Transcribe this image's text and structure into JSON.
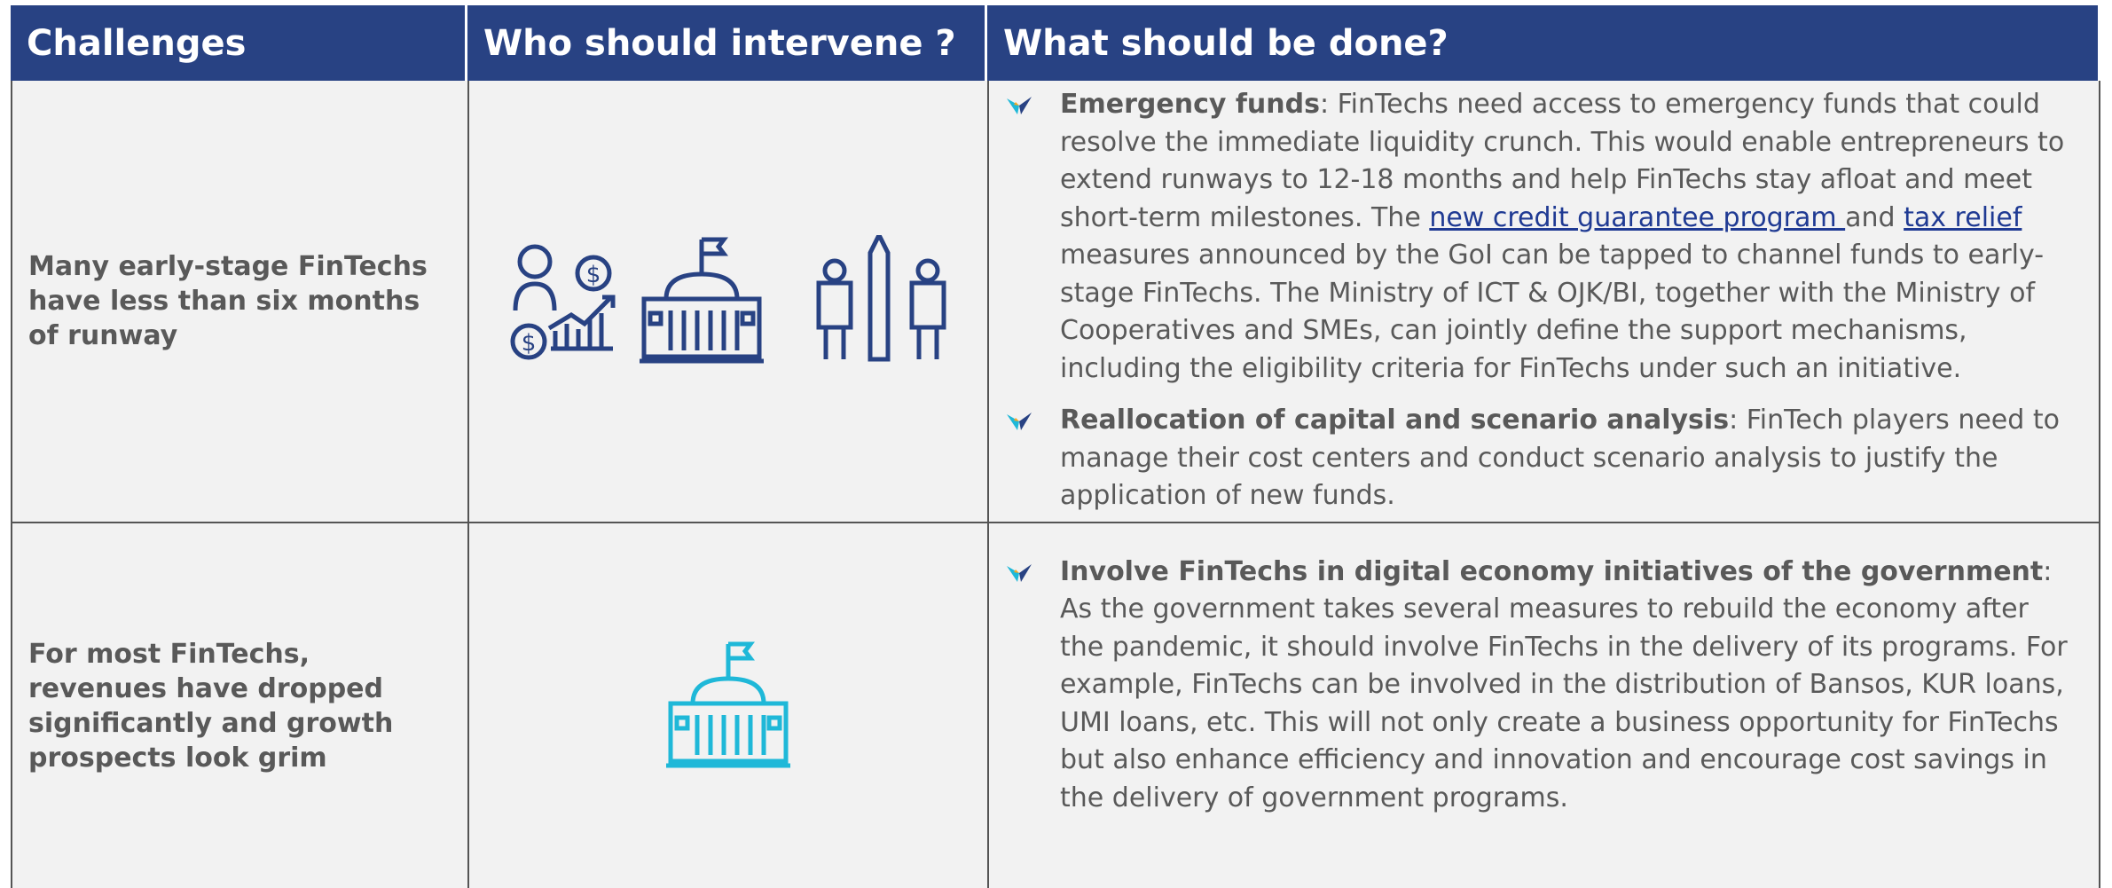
{
  "table": {
    "headers": [
      "Challenges",
      "Who should intervene ?",
      "What should be done?"
    ],
    "rows": [
      {
        "challenge": "Many early-stage FinTechs have less than six months of runway",
        "bullets": [
          {
            "segments": [
              {
                "text": "Emergency funds",
                "kind": "bold"
              },
              {
                "text": ": FinTechs need access to emergency funds that could resolve the immediate liquidity crunch. This would enable entrepreneurs to extend runways to 12-18 months and  help FinTechs stay afloat and meet short-term milestones. The ",
                "kind": "plain"
              },
              {
                "text": "new credit guarantee program ",
                "kind": "link"
              },
              {
                "text": "and ",
                "kind": "plain"
              },
              {
                "text": "tax relief ",
                "kind": "link"
              },
              {
                "text": "measures announced by the GoI can be tapped to channel funds to early-stage FinTechs. The Ministry of ICT & OJK/BI, together with the Ministry of Cooperatives and SMEs, can jointly define the support mechanisms, including the eligibility criteria for FinTechs under such an initiative.",
                "kind": "plain"
              }
            ]
          },
          {
            "segments": [
              {
                "text": "Reallocation of capital and scenario analysis",
                "kind": "bold"
              },
              {
                "text": ": FinTech players need to manage their cost centers and conduct scenario analysis to justify the application of new funds.",
                "kind": "plain"
              }
            ]
          }
        ]
      },
      {
        "challenge": "For most FinTechs, revenues have dropped significantly and growth prospects look grim",
        "bullets": [
          {
            "segments": [
              {
                "text": "Involve FinTechs in digital economy initiatives of the government",
                "kind": "bold"
              },
              {
                "text": ": As the government takes several measures to rebuild the economy after the pandemic, it should involve FinTechs in the delivery of its programs. For example, FinTechs can be involved in the distribution of Bansos, KUR loans, UMI loans, etc. This will not only create a business opportunity for FinTechs but also enhance efficiency and innovation and encourage cost savings in the delivery of government programs.",
                "kind": "plain"
              }
            ]
          }
        ]
      }
    ]
  }
}
